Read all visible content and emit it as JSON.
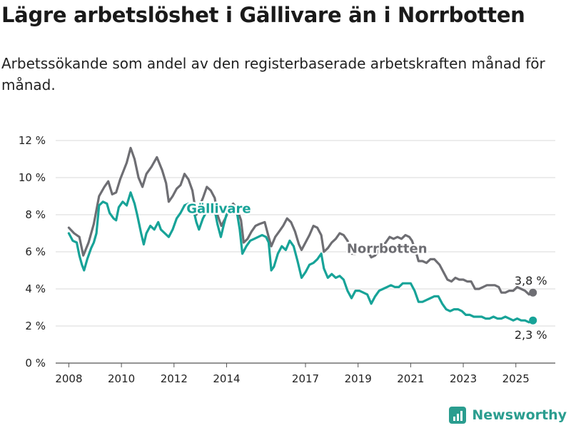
{
  "header": {
    "title": "Lägre arbetslöshet i Gällivare än i Norrbotten",
    "subtitle": "Arbetssökande som andel av den registerbaserade arbetskraften månad för månad."
  },
  "brand": {
    "name": "Newsworthy",
    "icon": "bar-chart-icon",
    "color": "#2a9d8f"
  },
  "chart_data": {
    "type": "line",
    "title": "",
    "xlabel": "",
    "ylabel": "",
    "xlim": [
      2007.5,
      2026.5
    ],
    "ylim": [
      0,
      12
    ],
    "grid": true,
    "y_ticks": [
      {
        "value": 0,
        "label": "0 %"
      },
      {
        "value": 2,
        "label": "2 %"
      },
      {
        "value": 4,
        "label": "4 %"
      },
      {
        "value": 6,
        "label": "6 %"
      },
      {
        "value": 8,
        "label": "8 %"
      },
      {
        "value": 10,
        "label": "10 %"
      },
      {
        "value": 12,
        "label": "12 %"
      }
    ],
    "x_ticks": [
      {
        "value": 2008,
        "label": "2008"
      },
      {
        "value": 2010,
        "label": "2010"
      },
      {
        "value": 2012,
        "label": "2012"
      },
      {
        "value": 2014,
        "label": "2014"
      },
      {
        "value": 2017,
        "label": "2017"
      },
      {
        "value": 2019,
        "label": "2019"
      },
      {
        "value": 2021,
        "label": "2021"
      },
      {
        "value": 2023,
        "label": "2023"
      },
      {
        "value": 2025,
        "label": "2025"
      }
    ],
    "series": [
      {
        "name": "Norrbotten",
        "color": "#6e6e73",
        "end_label": "3,8 %",
        "points": [
          [
            2008.0,
            7.3
          ],
          [
            2008.2,
            7.0
          ],
          [
            2008.4,
            6.8
          ],
          [
            2008.55,
            5.8
          ],
          [
            2008.75,
            6.5
          ],
          [
            2008.95,
            7.5
          ],
          [
            2009.15,
            9.0
          ],
          [
            2009.35,
            9.5
          ],
          [
            2009.5,
            9.8
          ],
          [
            2009.65,
            9.1
          ],
          [
            2009.8,
            9.2
          ],
          [
            2009.95,
            9.9
          ],
          [
            2010.2,
            10.8
          ],
          [
            2010.35,
            11.6
          ],
          [
            2010.5,
            11.0
          ],
          [
            2010.65,
            10.0
          ],
          [
            2010.8,
            9.5
          ],
          [
            2010.95,
            10.2
          ],
          [
            2011.15,
            10.6
          ],
          [
            2011.35,
            11.1
          ],
          [
            2011.55,
            10.4
          ],
          [
            2011.7,
            9.7
          ],
          [
            2011.8,
            8.7
          ],
          [
            2011.95,
            9.0
          ],
          [
            2012.1,
            9.4
          ],
          [
            2012.25,
            9.6
          ],
          [
            2012.4,
            10.2
          ],
          [
            2012.55,
            9.9
          ],
          [
            2012.7,
            9.3
          ],
          [
            2012.85,
            8.0
          ],
          [
            2012.95,
            8.4
          ],
          [
            2013.1,
            8.9
          ],
          [
            2013.25,
            9.5
          ],
          [
            2013.4,
            9.3
          ],
          [
            2013.55,
            8.9
          ],
          [
            2013.65,
            8.0
          ],
          [
            2013.8,
            7.4
          ],
          [
            2013.95,
            7.8
          ],
          [
            2014.1,
            8.3
          ],
          [
            2014.25,
            8.6
          ],
          [
            2014.4,
            8.3
          ],
          [
            2014.55,
            7.7
          ],
          [
            2014.65,
            6.5
          ],
          [
            2014.8,
            6.7
          ],
          [
            2014.95,
            7.1
          ],
          [
            2015.1,
            7.4
          ],
          [
            2015.25,
            7.5
          ],
          [
            2015.45,
            7.6
          ],
          [
            2015.6,
            6.8
          ],
          [
            2015.7,
            6.3
          ],
          [
            2015.85,
            6.8
          ],
          [
            2016.0,
            7.1
          ],
          [
            2016.15,
            7.4
          ],
          [
            2016.3,
            7.8
          ],
          [
            2016.45,
            7.6
          ],
          [
            2016.6,
            7.1
          ],
          [
            2016.75,
            6.4
          ],
          [
            2016.85,
            6.1
          ],
          [
            2017.0,
            6.5
          ],
          [
            2017.15,
            6.9
          ],
          [
            2017.3,
            7.4
          ],
          [
            2017.45,
            7.3
          ],
          [
            2017.6,
            6.9
          ],
          [
            2017.7,
            6.0
          ],
          [
            2017.85,
            6.2
          ],
          [
            2018.0,
            6.5
          ],
          [
            2018.15,
            6.7
          ],
          [
            2018.3,
            7.0
          ],
          [
            2018.45,
            6.9
          ],
          [
            2018.6,
            6.6
          ],
          [
            2018.75,
            5.9
          ],
          [
            2018.9,
            5.9
          ],
          [
            2019.05,
            6.3
          ],
          [
            2019.2,
            6.2
          ],
          [
            2019.35,
            6.1
          ],
          [
            2019.5,
            5.7
          ],
          [
            2019.65,
            5.8
          ],
          [
            2019.85,
            6.2
          ],
          [
            2020.05,
            6.5
          ],
          [
            2020.2,
            6.8
          ],
          [
            2020.35,
            6.7
          ],
          [
            2020.5,
            6.8
          ],
          [
            2020.65,
            6.7
          ],
          [
            2020.8,
            6.9
          ],
          [
            2020.95,
            6.8
          ],
          [
            2021.05,
            6.6
          ],
          [
            2021.2,
            6.0
          ],
          [
            2021.3,
            5.5
          ],
          [
            2021.45,
            5.5
          ],
          [
            2021.6,
            5.4
          ],
          [
            2021.75,
            5.6
          ],
          [
            2021.9,
            5.6
          ],
          [
            2022.1,
            5.3
          ],
          [
            2022.25,
            4.9
          ],
          [
            2022.4,
            4.5
          ],
          [
            2022.55,
            4.4
          ],
          [
            2022.7,
            4.6
          ],
          [
            2022.85,
            4.5
          ],
          [
            2023.0,
            4.5
          ],
          [
            2023.15,
            4.4
          ],
          [
            2023.3,
            4.4
          ],
          [
            2023.45,
            4.0
          ],
          [
            2023.6,
            4.0
          ],
          [
            2023.75,
            4.1
          ],
          [
            2023.9,
            4.2
          ],
          [
            2024.05,
            4.2
          ],
          [
            2024.2,
            4.2
          ],
          [
            2024.35,
            4.1
          ],
          [
            2024.45,
            3.8
          ],
          [
            2024.6,
            3.8
          ],
          [
            2024.75,
            3.9
          ],
          [
            2024.9,
            3.9
          ],
          [
            2025.05,
            4.1
          ],
          [
            2025.2,
            4.0
          ],
          [
            2025.35,
            3.9
          ],
          [
            2025.5,
            3.7
          ],
          [
            2025.65,
            3.8
          ]
        ]
      },
      {
        "name": "Gällivare",
        "color": "#17a398",
        "end_label": "2,3 %",
        "points": [
          [
            2008.0,
            7.0
          ],
          [
            2008.15,
            6.6
          ],
          [
            2008.3,
            6.5
          ],
          [
            2008.4,
            5.8
          ],
          [
            2008.5,
            5.3
          ],
          [
            2008.58,
            5.0
          ],
          [
            2008.7,
            5.6
          ],
          [
            2008.85,
            6.2
          ],
          [
            2008.95,
            6.5
          ],
          [
            2009.05,
            7.0
          ],
          [
            2009.15,
            8.5
          ],
          [
            2009.3,
            8.7
          ],
          [
            2009.45,
            8.6
          ],
          [
            2009.55,
            8.1
          ],
          [
            2009.7,
            7.8
          ],
          [
            2009.8,
            7.7
          ],
          [
            2009.9,
            8.4
          ],
          [
            2010.05,
            8.7
          ],
          [
            2010.2,
            8.5
          ],
          [
            2010.35,
            9.2
          ],
          [
            2010.5,
            8.6
          ],
          [
            2010.6,
            8.0
          ],
          [
            2010.75,
            7.0
          ],
          [
            2010.85,
            6.4
          ],
          [
            2010.95,
            7.0
          ],
          [
            2011.1,
            7.4
          ],
          [
            2011.25,
            7.2
          ],
          [
            2011.4,
            7.6
          ],
          [
            2011.5,
            7.2
          ],
          [
            2011.65,
            7.0
          ],
          [
            2011.8,
            6.8
          ],
          [
            2011.95,
            7.2
          ],
          [
            2012.1,
            7.8
          ],
          [
            2012.25,
            8.1
          ],
          [
            2012.4,
            8.5
          ],
          [
            2012.55,
            8.6
          ],
          [
            2012.7,
            8.5
          ],
          [
            2012.85,
            7.6
          ],
          [
            2012.95,
            7.2
          ],
          [
            2013.1,
            7.8
          ],
          [
            2013.25,
            8.2
          ],
          [
            2013.4,
            8.5
          ],
          [
            2013.5,
            8.6
          ],
          [
            2013.65,
            7.5
          ],
          [
            2013.78,
            6.8
          ],
          [
            2013.9,
            7.5
          ],
          [
            2014.05,
            8.3
          ],
          [
            2014.2,
            8.4
          ],
          [
            2014.35,
            8.5
          ],
          [
            2014.5,
            7.2
          ],
          [
            2014.6,
            5.9
          ],
          [
            2014.75,
            6.3
          ],
          [
            2014.9,
            6.6
          ],
          [
            2015.05,
            6.7
          ],
          [
            2015.2,
            6.8
          ],
          [
            2015.35,
            6.9
          ],
          [
            2015.5,
            6.8
          ],
          [
            2015.6,
            6.5
          ],
          [
            2015.7,
            5.0
          ],
          [
            2015.8,
            5.2
          ],
          [
            2015.95,
            5.9
          ],
          [
            2016.1,
            6.3
          ],
          [
            2016.25,
            6.1
          ],
          [
            2016.4,
            6.6
          ],
          [
            2016.55,
            6.3
          ],
          [
            2016.7,
            5.5
          ],
          [
            2016.85,
            4.6
          ],
          [
            2017.0,
            4.9
          ],
          [
            2017.15,
            5.3
          ],
          [
            2017.3,
            5.4
          ],
          [
            2017.45,
            5.6
          ],
          [
            2017.6,
            5.9
          ],
          [
            2017.7,
            5.1
          ],
          [
            2017.85,
            4.6
          ],
          [
            2018.0,
            4.8
          ],
          [
            2018.15,
            4.6
          ],
          [
            2018.3,
            4.7
          ],
          [
            2018.45,
            4.5
          ],
          [
            2018.6,
            3.9
          ],
          [
            2018.75,
            3.5
          ],
          [
            2018.9,
            3.9
          ],
          [
            2019.05,
            3.9
          ],
          [
            2019.2,
            3.8
          ],
          [
            2019.35,
            3.7
          ],
          [
            2019.5,
            3.2
          ],
          [
            2019.65,
            3.6
          ],
          [
            2019.8,
            3.9
          ],
          [
            2019.95,
            4.0
          ],
          [
            2020.1,
            4.1
          ],
          [
            2020.25,
            4.2
          ],
          [
            2020.4,
            4.1
          ],
          [
            2020.55,
            4.1
          ],
          [
            2020.7,
            4.3
          ],
          [
            2020.85,
            4.3
          ],
          [
            2021.0,
            4.3
          ],
          [
            2021.15,
            3.9
          ],
          [
            2021.3,
            3.3
          ],
          [
            2021.45,
            3.3
          ],
          [
            2021.6,
            3.4
          ],
          [
            2021.75,
            3.5
          ],
          [
            2021.9,
            3.6
          ],
          [
            2022.05,
            3.6
          ],
          [
            2022.2,
            3.2
          ],
          [
            2022.35,
            2.9
          ],
          [
            2022.5,
            2.8
          ],
          [
            2022.65,
            2.9
          ],
          [
            2022.8,
            2.9
          ],
          [
            2022.95,
            2.8
          ],
          [
            2023.1,
            2.6
          ],
          [
            2023.25,
            2.6
          ],
          [
            2023.4,
            2.5
          ],
          [
            2023.55,
            2.5
          ],
          [
            2023.7,
            2.5
          ],
          [
            2023.85,
            2.4
          ],
          [
            2024.0,
            2.4
          ],
          [
            2024.15,
            2.5
          ],
          [
            2024.3,
            2.4
          ],
          [
            2024.45,
            2.4
          ],
          [
            2024.6,
            2.5
          ],
          [
            2024.75,
            2.4
          ],
          [
            2024.9,
            2.3
          ],
          [
            2025.05,
            2.4
          ],
          [
            2025.2,
            2.3
          ],
          [
            2025.35,
            2.3
          ],
          [
            2025.5,
            2.2
          ],
          [
            2025.65,
            2.3
          ]
        ]
      }
    ]
  }
}
